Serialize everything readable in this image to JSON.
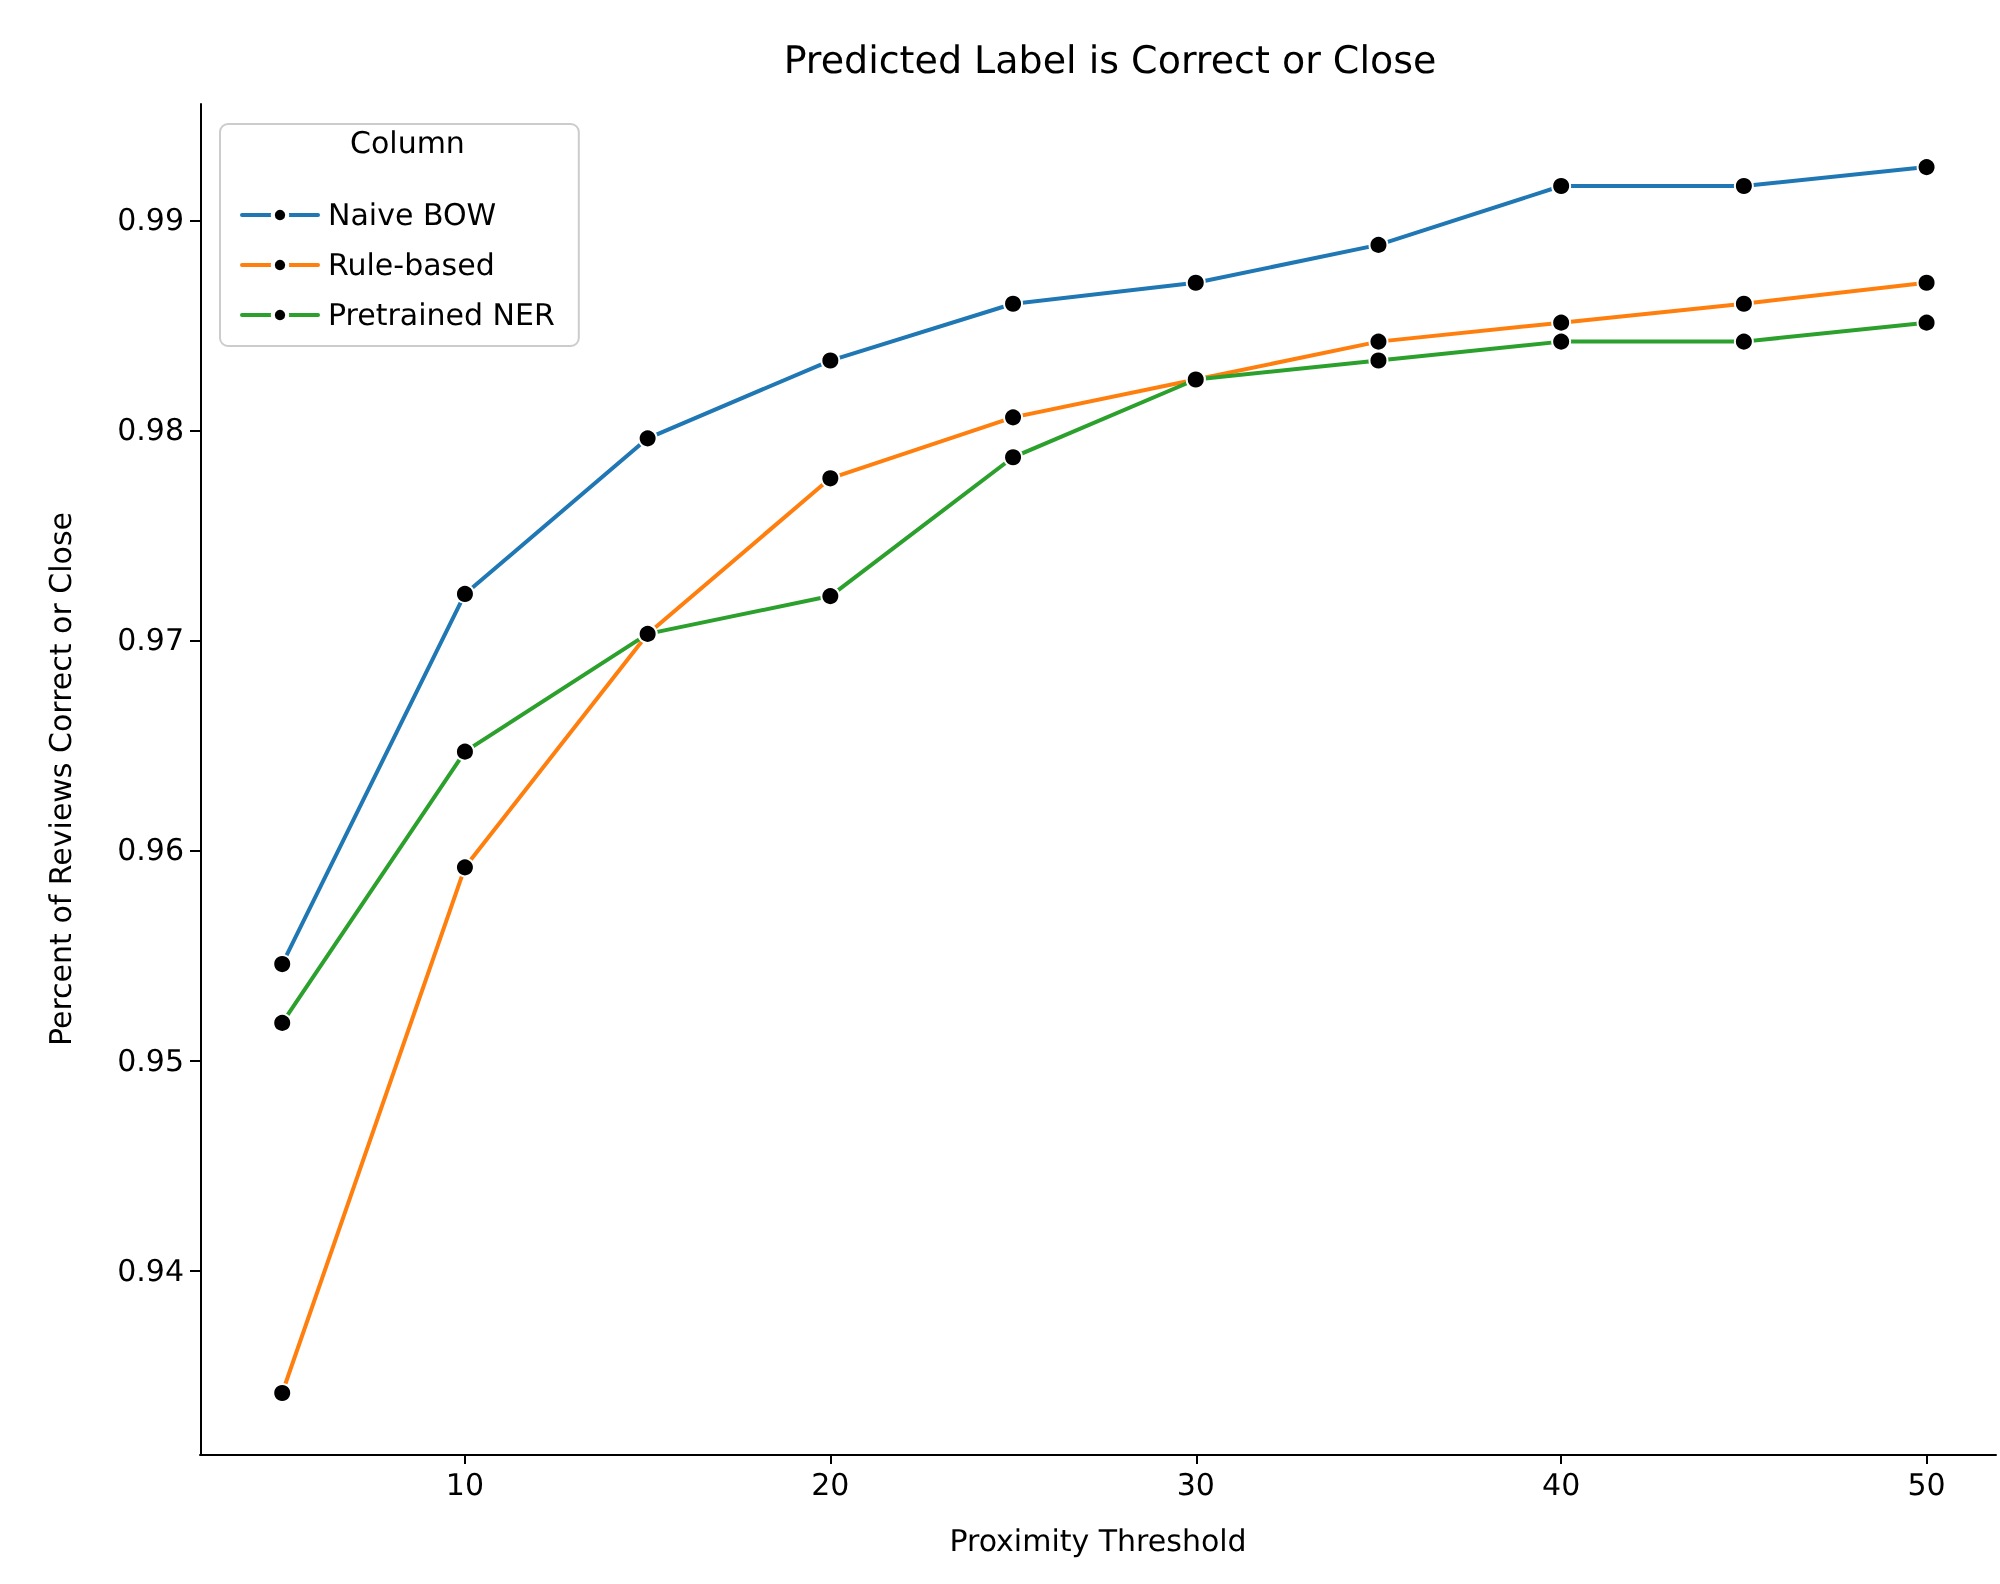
{
  "chart_data": {
    "type": "line",
    "title": "Predicted Label is Correct or Close",
    "xlabel": "Proximity Threshold",
    "ylabel": "Percent of Reviews Correct or Close",
    "legend_title": "Column",
    "x": [
      5,
      10,
      15,
      20,
      25,
      30,
      35,
      40,
      45,
      50
    ],
    "series": [
      {
        "name": "Naive BOW",
        "color": "#1f77b4",
        "values": [
          0.9546,
          0.9722,
          0.9796,
          0.9833,
          0.986,
          0.987,
          0.9888,
          0.9916,
          0.9916,
          0.9925
        ]
      },
      {
        "name": "Rule-based",
        "color": "#ff7f0e",
        "values": [
          0.9342,
          0.9592,
          0.9703,
          0.9777,
          0.9806,
          0.9824,
          0.9842,
          0.9851,
          0.986,
          0.987
        ]
      },
      {
        "name": "Pretrained NER",
        "color": "#2ca02c",
        "values": [
          0.9518,
          0.9647,
          0.9703,
          0.9721,
          0.9787,
          0.9824,
          0.9833,
          0.9842,
          0.9842,
          0.9851
        ]
      }
    ],
    "xlim": [
      2.75,
      51.9
    ],
    "xticks": [
      10,
      20,
      30,
      40,
      50
    ],
    "ylim": [
      0.9313,
      0.9955
    ],
    "yticks": [
      0.94,
      0.95,
      0.96,
      0.97,
      0.98,
      0.99
    ],
    "grid": false,
    "legend": "top left",
    "marker": "circle",
    "line_style": "solid"
  }
}
